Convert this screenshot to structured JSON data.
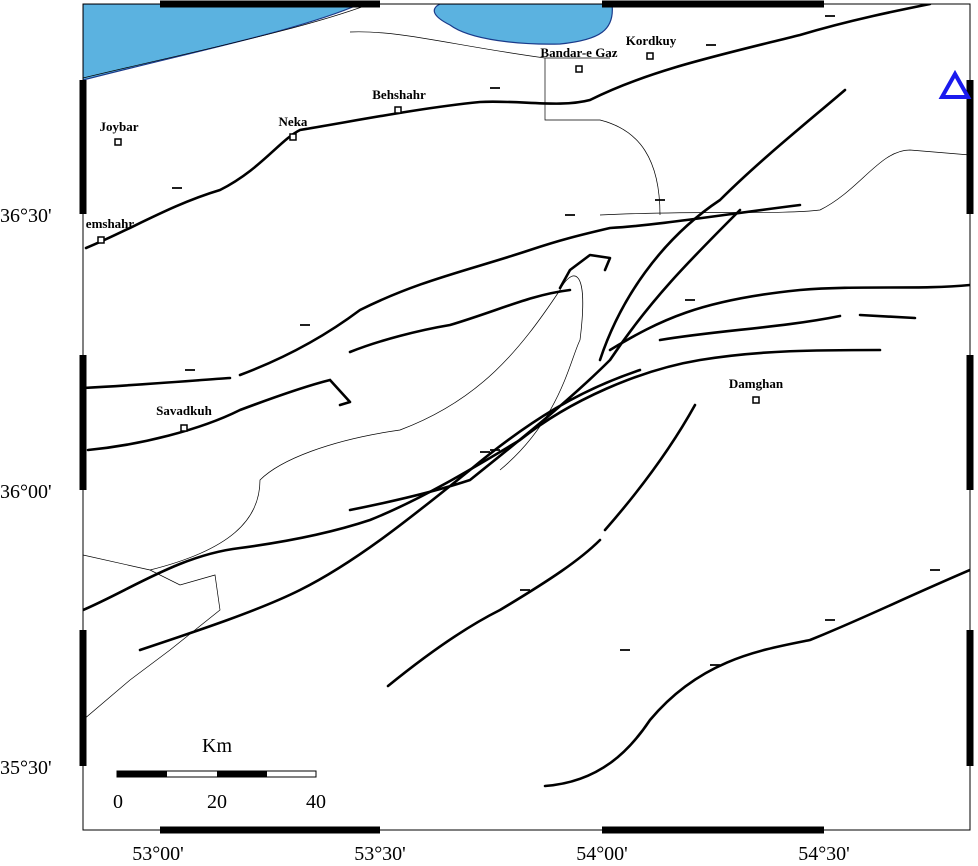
{
  "map": {
    "cities": [
      {
        "label": "Joybar"
      },
      {
        "label": "Neka"
      },
      {
        "label": "Behshahr"
      },
      {
        "label": "Bandar-e Gaz"
      },
      {
        "label": "Kordkuy"
      },
      {
        "label": "emshahr"
      },
      {
        "label": "Savadkuh"
      },
      {
        "label": "Damghan"
      }
    ],
    "latitude_labels": [
      "36°30'",
      "36°00'",
      "35°30'"
    ],
    "longitude_labels": [
      "53°00'",
      "53°30'",
      "54°00'",
      "54°30'"
    ],
    "scale_bar": {
      "unit": "Km",
      "labels": [
        "0",
        "20",
        "40"
      ]
    }
  }
}
